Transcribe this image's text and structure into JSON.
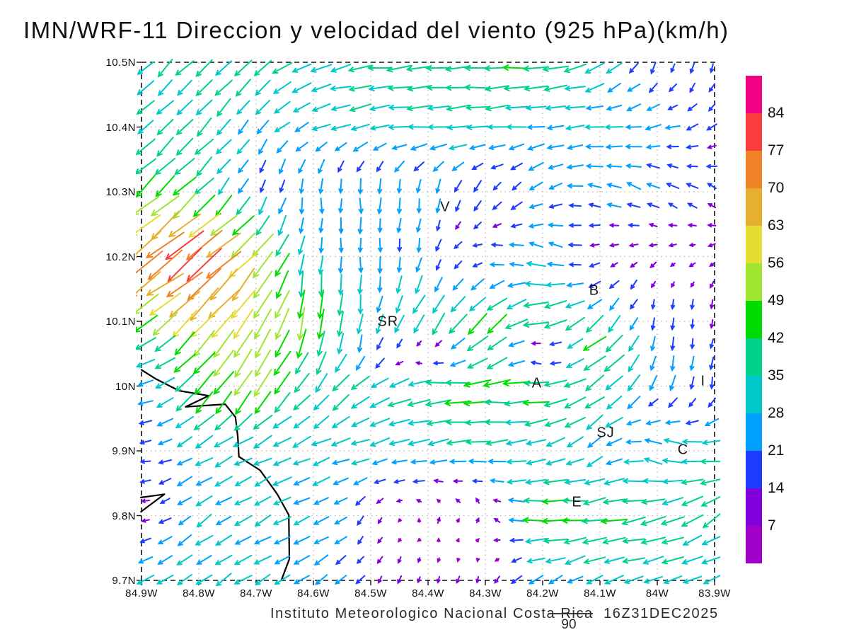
{
  "title": "IMN/WRF-11 Direccion y velocidad del viento (925 hPa)(km/h)",
  "footer": {
    "credit": "Instituto Meteorologico Nacional Costa Rica  16Z31DEC2025",
    "reference_label": "90"
  },
  "y_axis": {
    "labels": [
      "10.5N",
      "10.4N",
      "10.3N",
      "10.2N",
      "10.1N",
      "10N",
      "9.9N",
      "9.8N",
      "9.7N"
    ]
  },
  "x_axis": {
    "labels": [
      "84.9W",
      "84.8W",
      "84.7W",
      "84.6W",
      "84.5W",
      "84.4W",
      "84.3W",
      "84.2W",
      "84.1W",
      "84W",
      "83.9W"
    ]
  },
  "chart_data": {
    "type": "quiver",
    "model": "IMN/WRF-11",
    "variable": "Direccion y velocidad del viento",
    "level": "925 hPa",
    "units": "km/h",
    "valid_time": "16Z31DEC2025",
    "reference_speed": 90,
    "lon_range": [
      84.9,
      83.9
    ],
    "lat_range": [
      10.5,
      9.7
    ],
    "grid_on": true,
    "dir_convention": "degrees pointing toward; 0=east, 90=north, 180=west, 270=south",
    "grid_lons": [
      84.9,
      84.8,
      84.7,
      84.6,
      84.5,
      84.4,
      84.3,
      84.2,
      84.1,
      84.0,
      83.9
    ],
    "grid_lats": [
      10.5,
      10.4,
      10.3,
      10.2,
      10.1,
      10.05,
      10.0,
      9.9,
      9.8,
      9.7
    ],
    "field": [
      [
        [
          225,
          35
        ],
        [
          225,
          36
        ],
        [
          222,
          38
        ],
        [
          200,
          34
        ],
        [
          185,
          38
        ],
        [
          182,
          42
        ],
        [
          180,
          44
        ],
        [
          180,
          44
        ],
        [
          215,
          33
        ],
        [
          260,
          18
        ],
        [
          262,
          14
        ]
      ],
      [
        [
          225,
          33
        ],
        [
          226,
          35
        ],
        [
          230,
          26
        ],
        [
          205,
          28
        ],
        [
          190,
          32
        ],
        [
          185,
          34
        ],
        [
          185,
          32
        ],
        [
          188,
          28
        ],
        [
          185,
          28
        ],
        [
          190,
          24
        ],
        [
          215,
          18
        ]
      ],
      [
        [
          222,
          50
        ],
        [
          226,
          45
        ],
        [
          252,
          22
        ],
        [
          268,
          24
        ],
        [
          270,
          24
        ],
        [
          262,
          22
        ],
        [
          235,
          18
        ],
        [
          210,
          22
        ],
        [
          165,
          24
        ],
        [
          150,
          20
        ],
        [
          148,
          18
        ]
      ],
      [
        [
          215,
          72
        ],
        [
          218,
          85
        ],
        [
          225,
          58
        ],
        [
          268,
          26
        ],
        [
          270,
          24
        ],
        [
          255,
          20
        ],
        [
          175,
          16
        ],
        [
          160,
          28
        ],
        [
          200,
          11
        ],
        [
          205,
          10
        ],
        [
          210,
          10
        ]
      ],
      [
        [
          220,
          46
        ],
        [
          222,
          66
        ],
        [
          242,
          58
        ],
        [
          268,
          55
        ],
        [
          262,
          30
        ],
        [
          235,
          40
        ],
        [
          230,
          45
        ],
        [
          190,
          45
        ],
        [
          228,
          35
        ],
        [
          268,
          18
        ],
        [
          268,
          14
        ]
      ],
      [
        [
          200,
          32
        ],
        [
          230,
          50
        ],
        [
          238,
          50
        ],
        [
          255,
          42
        ],
        [
          245,
          20
        ],
        [
          70,
          9
        ],
        [
          215,
          42
        ],
        [
          80,
          9
        ],
        [
          215,
          50
        ],
        [
          260,
          22
        ],
        [
          258,
          18
        ]
      ],
      [
        [
          185,
          24
        ],
        [
          228,
          50
        ],
        [
          235,
          52
        ],
        [
          232,
          36
        ],
        [
          215,
          35
        ],
        [
          182,
          42
        ],
        [
          185,
          45
        ],
        [
          182,
          44
        ],
        [
          220,
          40
        ],
        [
          252,
          24
        ],
        [
          262,
          20
        ]
      ],
      [
        [
          185,
          16
        ],
        [
          210,
          30
        ],
        [
          205,
          32
        ],
        [
          200,
          30
        ],
        [
          195,
          30
        ],
        [
          190,
          32
        ],
        [
          185,
          33
        ],
        [
          196,
          30
        ],
        [
          215,
          28
        ],
        [
          152,
          33
        ],
        [
          180,
          36
        ]
      ],
      [
        [
          185,
          12
        ],
        [
          215,
          28
        ],
        [
          210,
          30
        ],
        [
          205,
          28
        ],
        [
          240,
          14
        ],
        [
          80,
          8
        ],
        [
          60,
          9
        ],
        [
          180,
          48
        ],
        [
          185,
          42
        ],
        [
          195,
          40
        ],
        [
          215,
          38
        ]
      ],
      [
        [
          210,
          28
        ],
        [
          215,
          30
        ],
        [
          212,
          30
        ],
        [
          215,
          26
        ],
        [
          235,
          14
        ],
        [
          255,
          10
        ],
        [
          250,
          10
        ],
        [
          210,
          26
        ],
        [
          200,
          30
        ],
        [
          195,
          32
        ],
        [
          200,
          30
        ]
      ]
    ],
    "colorbar": {
      "levels": [
        7,
        14,
        21,
        28,
        35,
        42,
        49,
        56,
        63,
        70,
        77,
        84
      ],
      "colors": [
        "#A000C8",
        "#8200DC",
        "#1E3CFF",
        "#00A0FF",
        "#00C8C8",
        "#00D28C",
        "#00DC00",
        "#A0E632",
        "#E6DC32",
        "#E6AF2D",
        "#F08228",
        "#FA3C3C",
        "#F00082"
      ]
    },
    "stations": [
      {
        "label": "V",
        "lon": 84.37,
        "lat": 10.275
      },
      {
        "label": "B",
        "lon": 84.11,
        "lat": 10.146
      },
      {
        "label": "SR",
        "lon": 84.47,
        "lat": 10.098
      },
      {
        "label": "A",
        "lon": 84.21,
        "lat": 10.003
      },
      {
        "label": "SJ",
        "lon": 84.09,
        "lat": 9.926
      },
      {
        "label": "C",
        "lon": 83.955,
        "lat": 9.9
      },
      {
        "label": "E",
        "lon": 84.14,
        "lat": 9.819
      },
      {
        "label": "I",
        "lon": 83.92,
        "lat": 10.006
      }
    ],
    "coastline_lonlat": [
      [
        [
          84.9,
          10.025
        ],
        [
          84.875,
          10.011
        ],
        [
          84.835,
          9.993
        ],
        [
          84.783,
          9.985
        ],
        [
          84.823,
          9.968
        ],
        [
          84.754,
          9.972
        ],
        [
          84.736,
          9.952
        ],
        [
          84.732,
          9.922
        ],
        [
          84.73,
          9.891
        ],
        [
          84.693,
          9.87
        ],
        [
          84.663,
          9.833
        ],
        [
          84.643,
          9.801
        ],
        [
          84.642,
          9.733
        ],
        [
          84.656,
          9.7
        ]
      ],
      [
        [
          84.901,
          9.828
        ],
        [
          84.86,
          9.833
        ],
        [
          84.901,
          9.806
        ]
      ]
    ]
  }
}
